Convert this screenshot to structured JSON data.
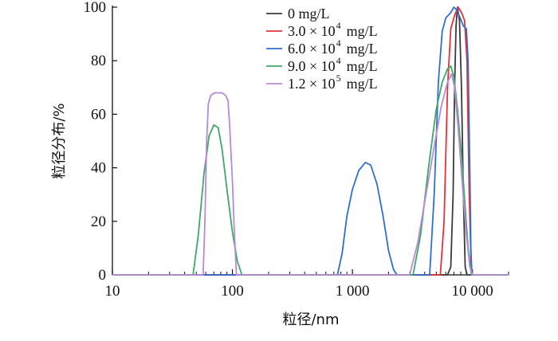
{
  "chart_data": {
    "type": "line",
    "title": "",
    "xlabel": "粒径/nm",
    "ylabel": "粒径分布/%",
    "xscale": "log",
    "xlim": [
      10,
      20000
    ],
    "ylim": [
      0,
      100
    ],
    "x_ticks": [
      10,
      100,
      1000,
      10000
    ],
    "x_tick_labels": [
      "10",
      "100",
      "1 000",
      "10 000"
    ],
    "y_ticks": [
      0,
      20,
      40,
      60,
      80,
      100
    ],
    "y_tick_labels": [
      "0",
      "20",
      "40",
      "60",
      "80",
      "100"
    ],
    "grid": false,
    "legend_position": "top-right",
    "series": [
      {
        "name": "0 mg/L",
        "legend": {
          "base": "0 mg/L",
          "exp": ""
        },
        "color": "#3a3a3a",
        "points": [
          [
            10,
            0
          ],
          [
            6200,
            0
          ],
          [
            6600,
            3
          ],
          [
            6900,
            30
          ],
          [
            7100,
            70
          ],
          [
            7300,
            93
          ],
          [
            7500,
            100
          ],
          [
            7800,
            95
          ],
          [
            8100,
            70
          ],
          [
            8400,
            30
          ],
          [
            8700,
            3
          ],
          [
            9000,
            0
          ],
          [
            20000,
            0
          ]
        ]
      },
      {
        "name": "3.0 × 10^4 mg/L",
        "legend": {
          "base": "3.0 × 10",
          "exp": "4",
          "unit": "mg/L"
        },
        "color": "#e0343a",
        "points": [
          [
            10,
            0
          ],
          [
            5400,
            0
          ],
          [
            5800,
            20
          ],
          [
            6200,
            70
          ],
          [
            6600,
            92
          ],
          [
            7100,
            97
          ],
          [
            7600,
            100
          ],
          [
            8100,
            98
          ],
          [
            8600,
            95
          ],
          [
            9000,
            80
          ],
          [
            9400,
            30
          ],
          [
            9800,
            0
          ],
          [
            20000,
            0
          ]
        ]
      },
      {
        "name": "6.0 × 10^4 mg/L",
        "legend": {
          "base": "6.0 × 10",
          "exp": "4",
          "unit": "mg/L"
        },
        "color": "#2f6fcc",
        "points": [
          [
            10,
            0
          ],
          [
            750,
            0
          ],
          [
            820,
            8
          ],
          [
            900,
            22
          ],
          [
            1000,
            32
          ],
          [
            1130,
            39
          ],
          [
            1280,
            42
          ],
          [
            1420,
            41
          ],
          [
            1600,
            34
          ],
          [
            1800,
            22
          ],
          [
            2000,
            9
          ],
          [
            2200,
            2
          ],
          [
            2350,
            0
          ],
          [
            4400,
            0
          ],
          [
            4800,
            30
          ],
          [
            5200,
            72
          ],
          [
            5600,
            91
          ],
          [
            6000,
            96
          ],
          [
            6600,
            98
          ],
          [
            7000,
            100
          ],
          [
            7400,
            99
          ],
          [
            7900,
            96
          ],
          [
            8400,
            93
          ],
          [
            8900,
            92
          ],
          [
            9200,
            80
          ],
          [
            9500,
            40
          ],
          [
            9700,
            10
          ],
          [
            9900,
            0
          ],
          [
            20000,
            0
          ]
        ]
      },
      {
        "name": "9.0 × 10^4 mg/L",
        "legend": {
          "base": "9.0 × 10",
          "exp": "4",
          "unit": "mg/L"
        },
        "color": "#3da867",
        "points": [
          [
            10,
            0
          ],
          [
            47,
            0
          ],
          [
            52,
            15
          ],
          [
            58,
            38
          ],
          [
            64,
            52
          ],
          [
            70,
            56
          ],
          [
            76,
            55
          ],
          [
            82,
            47
          ],
          [
            90,
            32
          ],
          [
            100,
            16
          ],
          [
            110,
            5
          ],
          [
            120,
            0
          ],
          [
            3200,
            0
          ],
          [
            3700,
            15
          ],
          [
            4300,
            40
          ],
          [
            5000,
            62
          ],
          [
            5600,
            72
          ],
          [
            6200,
            77
          ],
          [
            6600,
            78
          ],
          [
            7000,
            74
          ],
          [
            7500,
            62
          ],
          [
            8100,
            45
          ],
          [
            8700,
            25
          ],
          [
            9200,
            10
          ],
          [
            9800,
            0
          ],
          [
            20000,
            0
          ]
        ]
      },
      {
        "name": "1.2 × 10^5 mg/L",
        "legend": {
          "base": "1.2 × 10",
          "exp": "5",
          "unit": "mg/L"
        },
        "color": "#b889d4",
        "points": [
          [
            10,
            0
          ],
          [
            57,
            0
          ],
          [
            59,
            20
          ],
          [
            61,
            50
          ],
          [
            63,
            64
          ],
          [
            66,
            67
          ],
          [
            71,
            68
          ],
          [
            76,
            68
          ],
          [
            82,
            68
          ],
          [
            88,
            67
          ],
          [
            92,
            65
          ],
          [
            95,
            55
          ],
          [
            100,
            35
          ],
          [
            104,
            15
          ],
          [
            108,
            0
          ],
          [
            3000,
            0
          ],
          [
            3500,
            12
          ],
          [
            4100,
            30
          ],
          [
            4800,
            48
          ],
          [
            5500,
            63
          ],
          [
            6200,
            72
          ],
          [
            6700,
            75
          ],
          [
            7100,
            70
          ],
          [
            7600,
            55
          ],
          [
            8200,
            35
          ],
          [
            8900,
            15
          ],
          [
            9500,
            3
          ],
          [
            10000,
            0
          ],
          [
            20000,
            0
          ]
        ]
      }
    ]
  }
}
